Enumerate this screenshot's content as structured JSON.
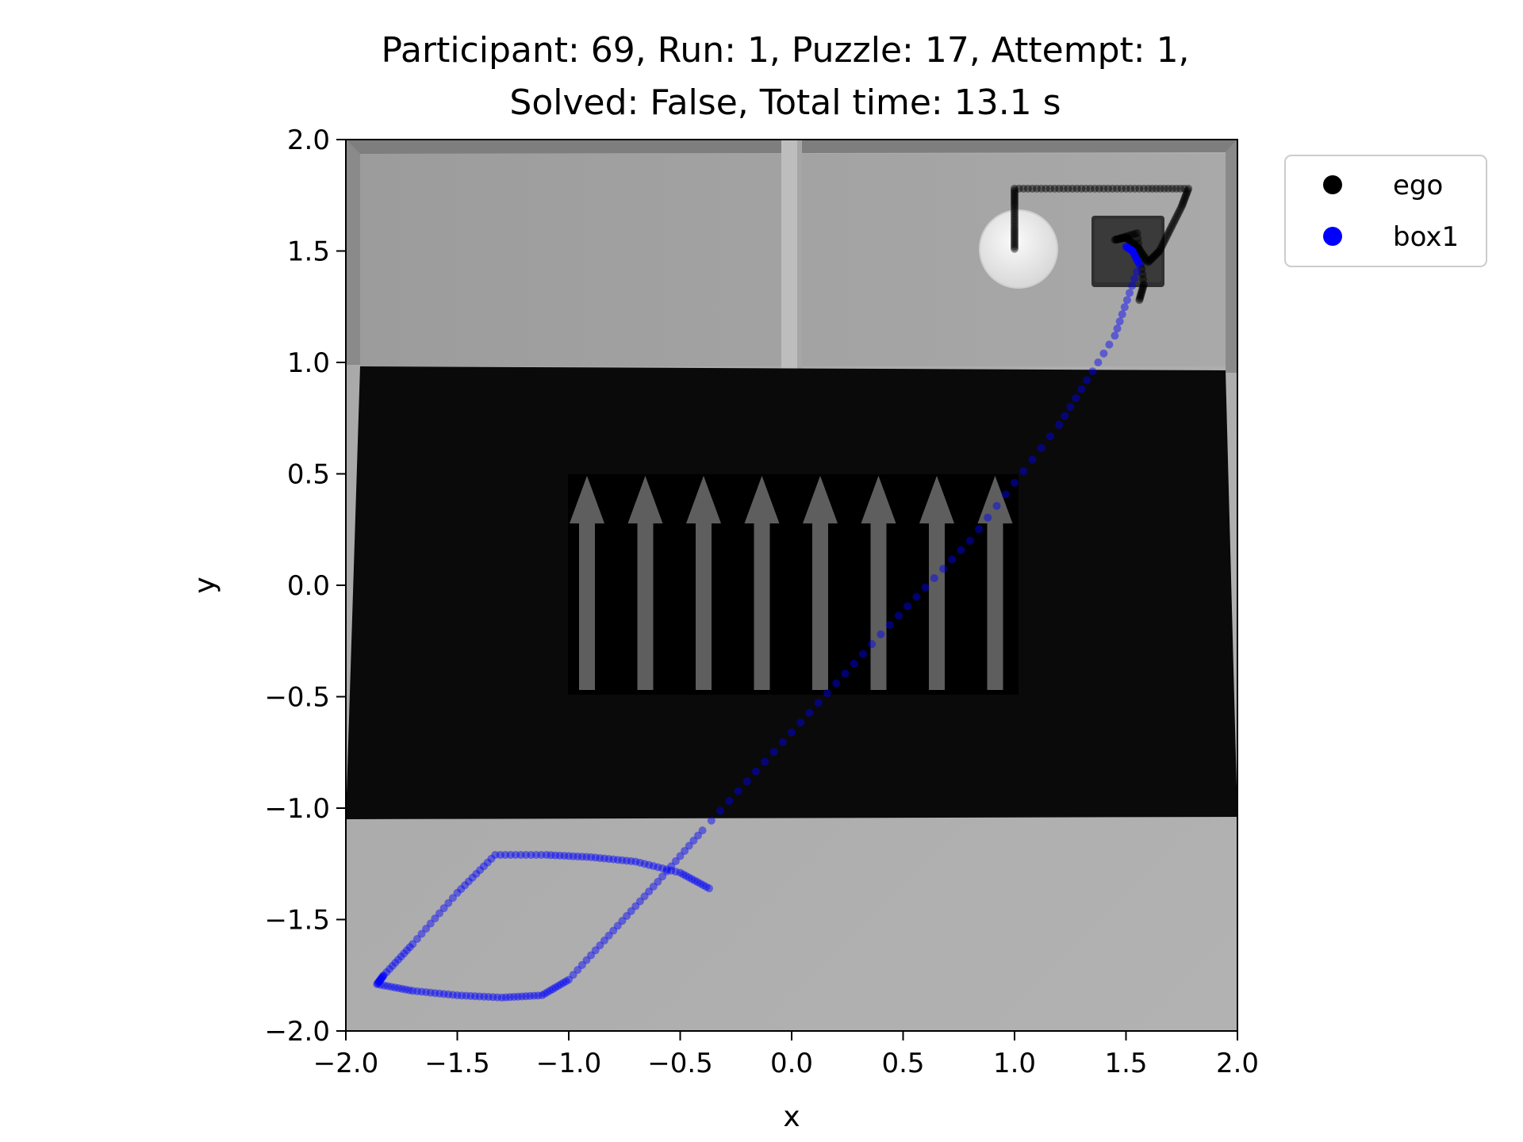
{
  "chart_data": {
    "type": "scatter",
    "title_lines": [
      "Participant: 69, Run: 1, Puzzle: 17, Attempt: 1,",
      "Solved: False, Total time: 13.1 s"
    ],
    "xlabel": "x",
    "ylabel": "y",
    "xlim": [
      -2.0,
      2.0
    ],
    "ylim": [
      -2.0,
      2.0
    ],
    "xticks": [
      -2.0,
      -1.5,
      -1.0,
      -0.5,
      0.0,
      0.5,
      1.0,
      1.5,
      2.0
    ],
    "yticks": [
      -2.0,
      -1.5,
      -1.0,
      -0.5,
      0.0,
      0.5,
      1.0,
      1.5,
      2.0
    ],
    "xtick_labels": [
      "−2.0",
      "−1.5",
      "−1.0",
      "−0.5",
      "0.0",
      "0.5",
      "1.0",
      "1.5",
      "2.0"
    ],
    "ytick_labels": [
      "−2.0",
      "−1.5",
      "−1.0",
      "−0.5",
      "0.0",
      "0.5",
      "1.0",
      "1.5",
      "2.0"
    ],
    "grid": false,
    "legend_position": "outside-upper-right",
    "background": "top-down rendering of the puzzle room",
    "series": [
      {
        "name": "ego",
        "color": "#000000",
        "points": [
          [
            1.0,
            1.51
          ],
          [
            1.0,
            1.6
          ],
          [
            1.0,
            1.7
          ],
          [
            1.0,
            1.78
          ],
          [
            1.2,
            1.78
          ],
          [
            1.4,
            1.78
          ],
          [
            1.6,
            1.78
          ],
          [
            1.78,
            1.78
          ],
          [
            1.75,
            1.7
          ],
          [
            1.7,
            1.6
          ],
          [
            1.65,
            1.5
          ],
          [
            1.6,
            1.45
          ],
          [
            1.55,
            1.52
          ],
          [
            1.5,
            1.56
          ],
          [
            1.45,
            1.55
          ],
          [
            1.55,
            1.58
          ],
          [
            1.58,
            1.35
          ],
          [
            1.56,
            1.28
          ]
        ]
      },
      {
        "name": "box1",
        "color": "#0000ff",
        "points": [
          [
            -0.37,
            -1.36
          ],
          [
            -0.5,
            -1.29
          ],
          [
            -0.7,
            -1.24
          ],
          [
            -0.9,
            -1.22
          ],
          [
            -1.1,
            -1.21
          ],
          [
            -1.33,
            -1.21
          ],
          [
            -1.5,
            -1.38
          ],
          [
            -1.7,
            -1.61
          ],
          [
            -1.83,
            -1.75
          ],
          [
            -1.86,
            -1.79
          ],
          [
            -1.7,
            -1.82
          ],
          [
            -1.5,
            -1.84
          ],
          [
            -1.3,
            -1.85
          ],
          [
            -1.12,
            -1.84
          ],
          [
            -1.0,
            -1.77
          ],
          [
            -0.8,
            -1.55
          ],
          [
            -0.6,
            -1.33
          ],
          [
            -0.4,
            -1.1
          ],
          [
            0.0,
            -0.66
          ],
          [
            0.4,
            -0.22
          ],
          [
            0.8,
            0.2
          ],
          [
            1.2,
            0.72
          ],
          [
            1.45,
            1.12
          ],
          [
            1.56,
            1.44
          ],
          [
            1.53,
            1.5
          ],
          [
            1.5,
            1.52
          ]
        ]
      }
    ]
  }
}
